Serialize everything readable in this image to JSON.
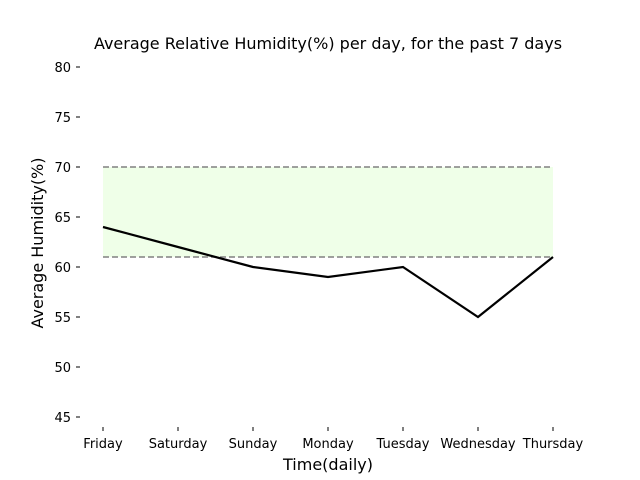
{
  "chart_data": {
    "type": "line",
    "title": "Average Relative Humidity(%) per day, for the past 7 days",
    "xlabel": "Time(daily)",
    "ylabel": "Average Humidity(%)",
    "categories": [
      "Friday",
      "Saturday",
      "Sunday",
      "Monday",
      "Tuesday",
      "Wednesday",
      "Thursday"
    ],
    "series": [
      {
        "values": [
          64,
          62,
          60,
          59,
          60,
          55,
          61
        ],
        "color": "#000000"
      }
    ],
    "ylim": [
      44,
      81
    ],
    "yticks": [
      45,
      50,
      55,
      60,
      65,
      70,
      75,
      80
    ],
    "band": {
      "low": 61,
      "high": 70,
      "fill_color": "#efffe8",
      "line_color": "#808080",
      "line_style": "dashed"
    },
    "grid": false,
    "legend": "none"
  }
}
